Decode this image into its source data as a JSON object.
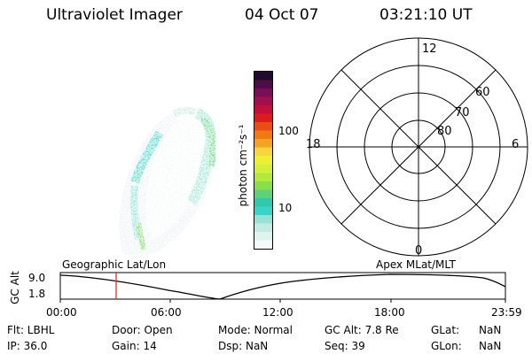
{
  "header": {
    "instrument": "Ultraviolet Imager",
    "date": "04 Oct 07",
    "time": "03:21:10 UT"
  },
  "colorbar": {
    "unit_label": "photon cm⁻²s⁻¹",
    "tick_labels": [
      "100",
      "10"
    ],
    "colors": [
      "#f4fafa",
      "#dff3ee",
      "#c4ebe2",
      "#97e3d3",
      "#37d4c9",
      "#32c8aa",
      "#5fd17c",
      "#89de4d",
      "#b4e83a",
      "#d4ef3a",
      "#eeee32",
      "#f5d63f",
      "#f5a323",
      "#f07a11",
      "#ea4e16",
      "#dd1d1d",
      "#c2103a",
      "#a0104e",
      "#7a0f57",
      "#4d0e48",
      "#1f0b2b"
    ]
  },
  "polar_plot": {
    "mlt_labels": {
      "top": "12",
      "left": "18",
      "right": "6",
      "bottom": "0"
    },
    "mlat_labels": [
      "60",
      "70",
      "80"
    ]
  },
  "timeline": {
    "y_axis_label": "GC Alt",
    "y_top": "9.0",
    "y_bottom": "1.8",
    "left_caption": "Geographic Lat/Lon",
    "right_caption": "Apex MLat/MLT",
    "time_ticks": [
      "00:00",
      "06:00",
      "12:00",
      "18:00",
      "23:59"
    ],
    "marker_color": "#e02020",
    "marker_time": "03:21:10"
  },
  "info": {
    "flt": "Flt: LBHL",
    "ip": "IP: 36.0",
    "door": "Door: Open",
    "gain": "Gain: 14",
    "mode": "Mode: Normal",
    "dsp": "Dsp: NaN",
    "gc_alt": "GC Alt: 7.8 Re",
    "seq": "Seq: 39",
    "glat_label": "GLat:",
    "glat_value": "NaN",
    "glon_label": "GLon:",
    "glon_value": "NaN"
  }
}
